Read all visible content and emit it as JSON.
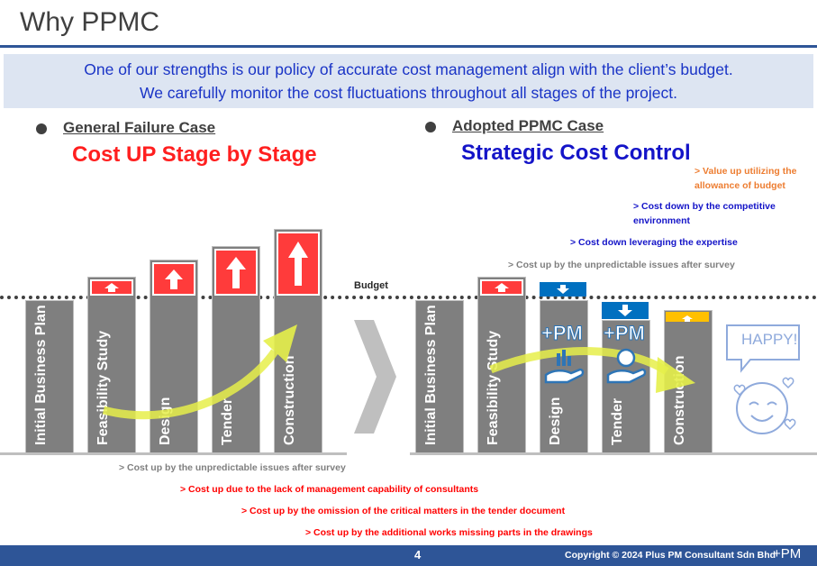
{
  "title": "Why PPMC",
  "banner": {
    "line1": "One of our strengths is our policy of accurate cost management align with the client’s budget.",
    "line2": "We carefully monitor the cost fluctuations throughout all stages of the project."
  },
  "left": {
    "heading": "General Failure Case",
    "headline": "Cost UP Stage by Stage",
    "stages": [
      "Initial Business Plan",
      "Feasibility Study",
      "Design",
      "Tender",
      "Construction"
    ]
  },
  "right": {
    "heading": "Adopted PPMC Case",
    "headline": "Strategic Cost Control",
    "stages": [
      "Initial Business Plan",
      "Feasibility Study",
      "Design",
      "Tender",
      "Construction"
    ],
    "logo": "+PM",
    "happy": "HAPPY!"
  },
  "budget_label": "Budget",
  "notes_right": {
    "value_up_1": "> Value up utilizing the",
    "value_up_2": "allowance of budget",
    "cost_down_comp_1": "> Cost down by the competitive",
    "cost_down_comp_2": "environment",
    "cost_down_expertise": "> Cost down leveraging the expertise",
    "cost_up_survey": "> Cost up by the unpredictable issues after survey"
  },
  "notes_left": {
    "survey": "> Cost up by the unpredictable issues after survey",
    "management": "> Cost up due to the lack of management capability of consultants",
    "omission": "> Cost up by the omission of the critical matters in the tender document",
    "additional": "> Cost up by the additional works missing parts in the drawings"
  },
  "footer": {
    "page": "4",
    "copyright": "Copyright ©  2024 Plus PM Consultant Sdn Bhd",
    "logo": "+PM"
  },
  "colors": {
    "accent_blue": "#2e5597",
    "banner_text": "#1a34c6",
    "cost_up_red": "#ff3b3b",
    "cost_down_blue": "#0070c0",
    "value_up_orange": "#ffc000",
    "arrow_yellow": "#e6ef4a"
  }
}
